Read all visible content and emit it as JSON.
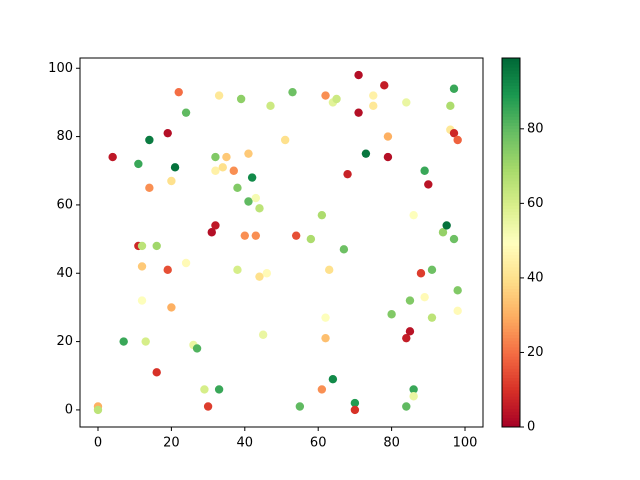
{
  "chart_data": {
    "type": "scatter",
    "colormap": "RdYlGn",
    "x": [
      0,
      0,
      4,
      7,
      11,
      11,
      12,
      12,
      12,
      13,
      14,
      14,
      16,
      16,
      19,
      19,
      20,
      20,
      21,
      22,
      24,
      24,
      26,
      27,
      29,
      30,
      31,
      32,
      32,
      32,
      33,
      33,
      34,
      35,
      37,
      38,
      38,
      39,
      40,
      41,
      41,
      42,
      43,
      43,
      44,
      44,
      45,
      46,
      47,
      51,
      53,
      54,
      55,
      58,
      61,
      61,
      62,
      62,
      62,
      63,
      64,
      65,
      64,
      67,
      68,
      70,
      70,
      71,
      71,
      73,
      75,
      75,
      78,
      79,
      79,
      80,
      84,
      84,
      84,
      85,
      85,
      86,
      86,
      86,
      88,
      89,
      89,
      90,
      91,
      91,
      94,
      95,
      96,
      96,
      97,
      97,
      97,
      98,
      98,
      98
    ],
    "values": [
      1,
      0,
      74,
      20,
      72,
      48,
      48,
      42,
      32,
      20,
      79,
      65,
      48,
      11,
      81,
      41,
      67,
      30,
      71,
      93,
      87,
      43,
      19,
      18,
      6,
      1,
      52,
      54,
      74,
      70,
      92,
      6,
      71,
      74,
      70,
      65,
      41,
      91,
      51,
      75,
      61,
      68,
      51,
      62,
      59,
      39,
      22,
      40,
      89,
      79,
      93,
      51,
      1,
      50,
      57,
      6,
      92,
      27,
      21,
      41,
      90,
      91,
      9,
      47,
      69,
      2,
      0,
      98,
      87,
      75,
      92,
      89,
      95,
      74,
      80,
      28,
      90,
      21,
      1,
      23,
      32,
      57,
      6,
      4,
      40,
      70,
      33,
      66,
      41,
      27,
      52,
      54,
      82,
      89,
      94,
      81,
      50,
      79,
      35,
      29
    ],
    "color_values": [
      30,
      65,
      5,
      85,
      85,
      8,
      65,
      35,
      50,
      60,
      95,
      25,
      70,
      10,
      3,
      15,
      40,
      30,
      97,
      20,
      80,
      48,
      55,
      82,
      60,
      12,
      3,
      5,
      75,
      45,
      42,
      85,
      40,
      35,
      25,
      75,
      60,
      73,
      25,
      35,
      80,
      92,
      25,
      52,
      65,
      40,
      55,
      48,
      62,
      40,
      78,
      15,
      80,
      68,
      68,
      25,
      25,
      50,
      33,
      40,
      57,
      62,
      92,
      78,
      7,
      88,
      10,
      3,
      3,
      96,
      45,
      42,
      6,
      3,
      30,
      75,
      55,
      6,
      80,
      4,
      75,
      50,
      85,
      55,
      12,
      85,
      48,
      4,
      78,
      65,
      72,
      97,
      42,
      68,
      85,
      8,
      78,
      18,
      75,
      48
    ],
    "xlim": [
      -4.9,
      104.9
    ],
    "ylim": [
      -5,
      103
    ],
    "xticks": [
      0,
      20,
      40,
      60,
      80,
      100
    ],
    "yticks": [
      0,
      20,
      40,
      60,
      80,
      100
    ],
    "clim": [
      0,
      99
    ],
    "cticks": [
      0,
      20,
      40,
      60,
      80
    ]
  }
}
